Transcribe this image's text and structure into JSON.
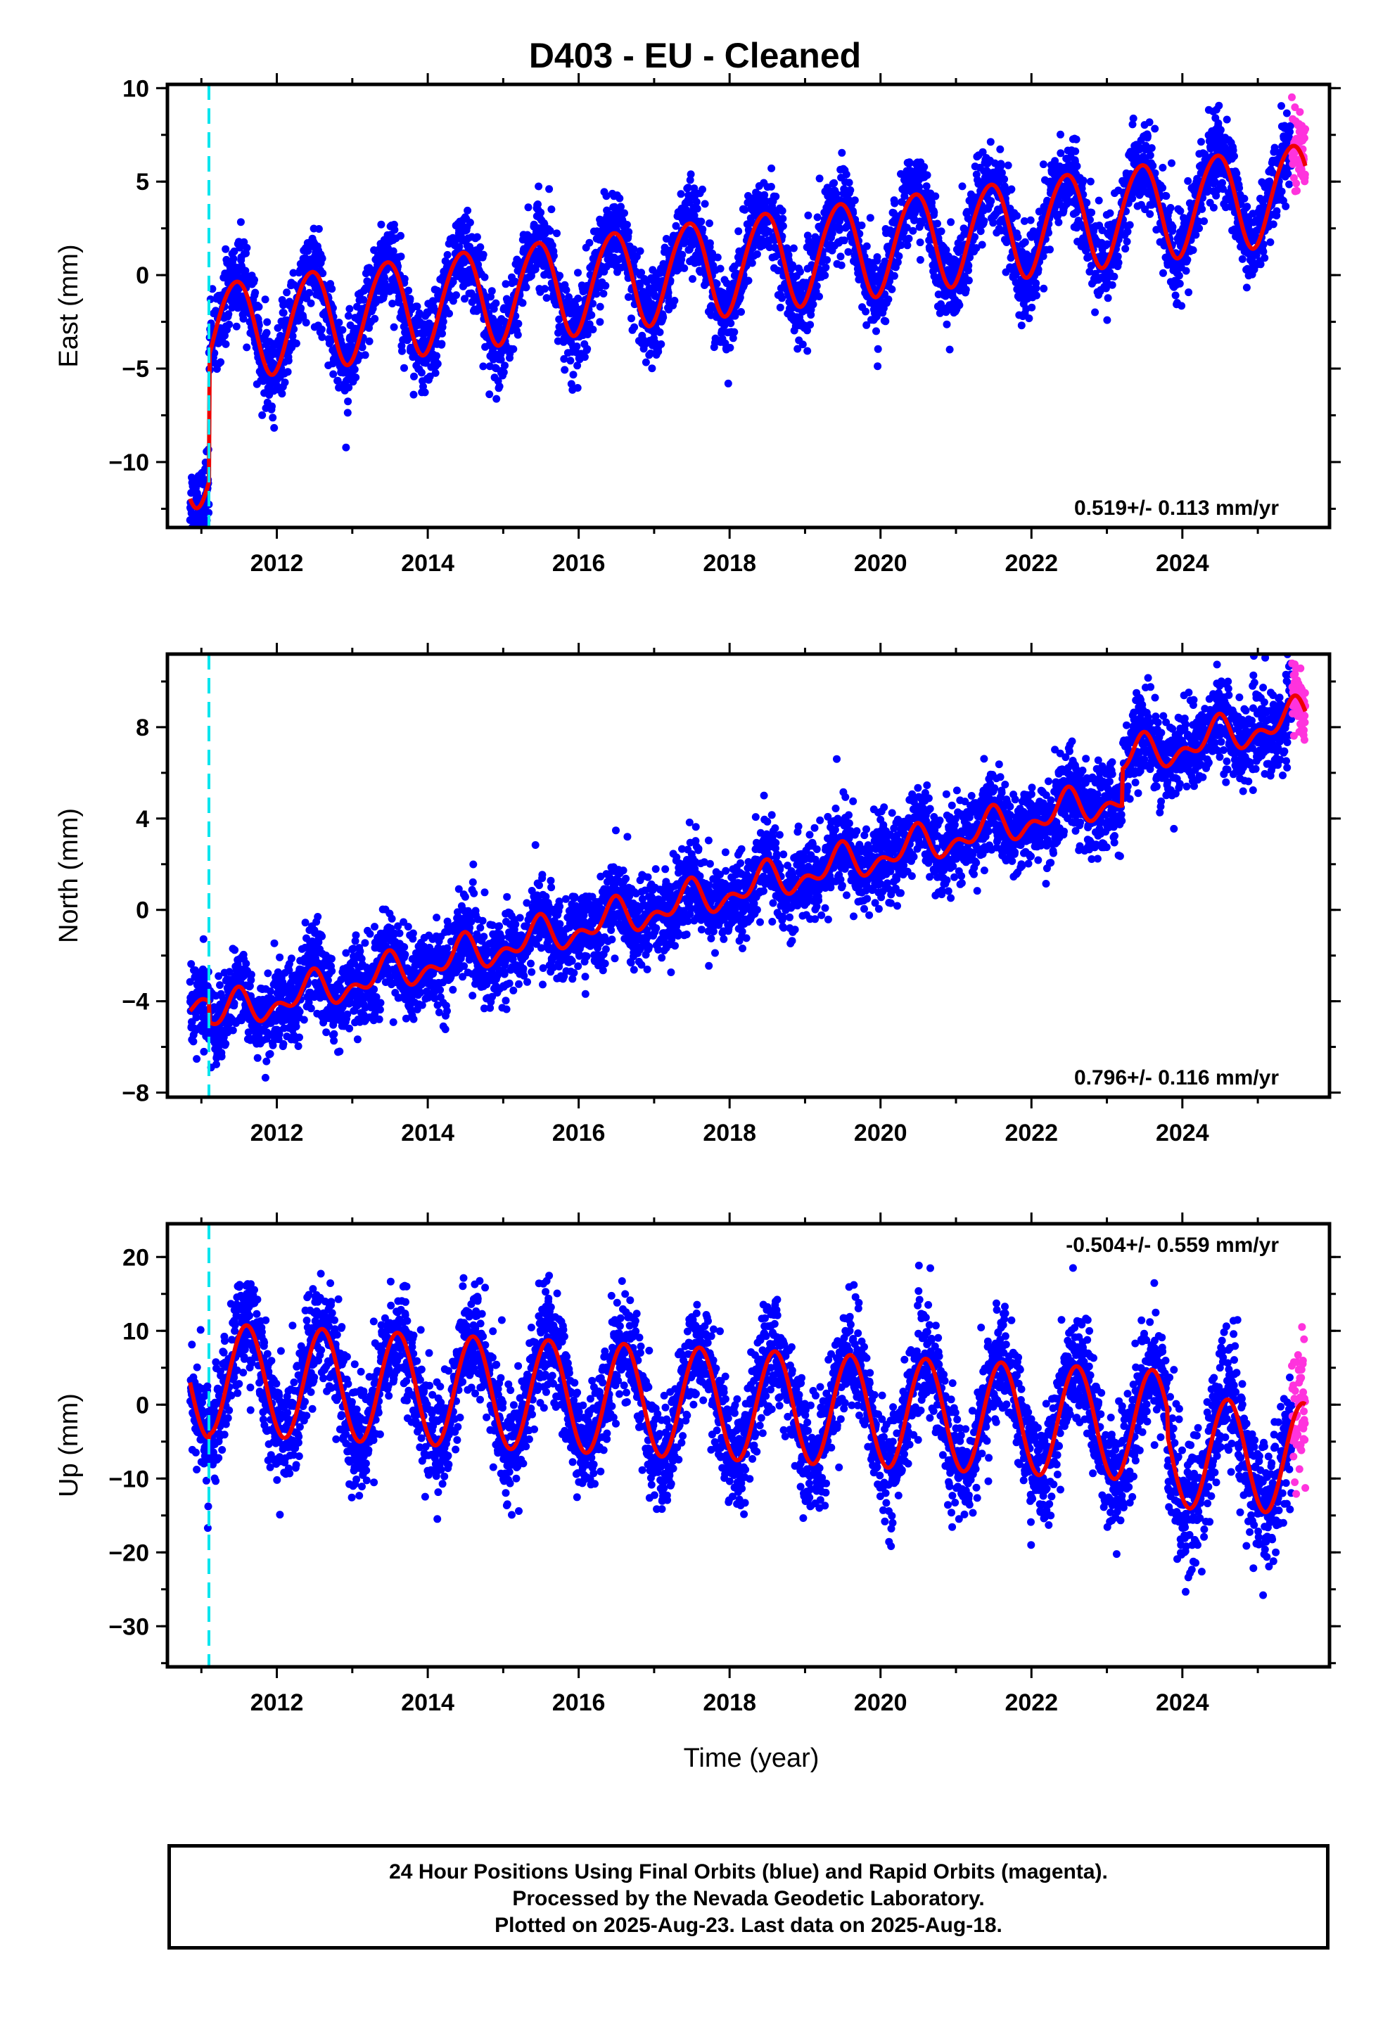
{
  "title": "D403  - EU - Cleaned",
  "x_axis_label": "Time (year)",
  "colors": {
    "final_orbits": "#0000ff",
    "rapid_orbits": "#ff33dd",
    "model_fit": "#ee0000",
    "event_marker": "#00e5ee"
  },
  "caption": {
    "line1": "24 Hour Positions Using Final Orbits (blue) and Rapid Orbits (magenta).",
    "line2": "Processed by the Nevada Geodetic Laboratory.",
    "line3": "Plotted on 2025-Aug-23. Last data on 2025-Aug-18."
  },
  "chart_data": [
    {
      "type": "scatter",
      "component": "East",
      "ylabel": "East (mm)",
      "rate_label": "0.519+/- 0.113 mm/yr",
      "xlim": [
        2010.55,
        2025.95
      ],
      "ylim": [
        -13.5,
        10.2
      ],
      "yticks": [
        -10,
        -5,
        0,
        5,
        10
      ],
      "xticks": [
        2012,
        2014,
        2016,
        2018,
        2020,
        2022,
        2024
      ],
      "data_start": 2010.85,
      "data_end": 2025.63,
      "rapid_start": 2025.45,
      "event_marker_x": 2011.1,
      "model": {
        "pre_event_offset": -9.7,
        "post_event_offset": -3.0,
        "trend_mm_per_yr": 0.519,
        "trend_origin": 2011.1,
        "annual_amplitude": 2.6,
        "annual_peak_phase": 0.45,
        "semiannual_amplitude": 0.2,
        "semiannual_peak_phase": 0.15,
        "post_event_decay_yr": 0.12
      },
      "scatter_sigma": 1.1
    },
    {
      "type": "scatter",
      "component": "North",
      "ylabel": "North (mm)",
      "rate_label": "0.796+/- 0.116 mm/yr",
      "xlim": [
        2010.55,
        2025.95
      ],
      "ylim": [
        -8.2,
        11.2
      ],
      "yticks": [
        -8,
        -4,
        0,
        4,
        8
      ],
      "xticks": [
        2012,
        2014,
        2016,
        2018,
        2020,
        2022,
        2024
      ],
      "data_start": 2010.85,
      "data_end": 2025.63,
      "rapid_start": 2025.45,
      "event_marker_x": 2011.1,
      "model": {
        "pre_event_offset": -3.8,
        "post_event_offset": -4.7,
        "trend_mm_per_yr": 0.796,
        "trend_origin": 2011.1,
        "annual_amplitude": 0.6,
        "annual_peak_phase": 0.45,
        "semiannual_amplitude": 0.45,
        "semiannual_peak_phase": 0.0,
        "extra_offset_after": 2023.2,
        "extra_offset_mm": 1.6,
        "post_event_decay_yr": 0.0
      },
      "scatter_sigma": 0.9
    },
    {
      "type": "scatter",
      "component": "Up",
      "ylabel": "Up (mm)",
      "rate_label": "-0.504+/- 0.559 mm/yr",
      "xlim": [
        2010.55,
        2025.95
      ],
      "ylim": [
        -35.5,
        24.5
      ],
      "yticks": [
        -30,
        -20,
        -10,
        0,
        10,
        20
      ],
      "xticks": [
        2012,
        2014,
        2016,
        2018,
        2020,
        2022,
        2024
      ],
      "data_start": 2010.85,
      "data_end": 2025.63,
      "rapid_start": 2025.45,
      "event_marker_x": 2011.1,
      "model": {
        "pre_event_offset": 3.0,
        "post_event_offset": 3.5,
        "trend_mm_per_yr": -0.504,
        "trend_origin": 2011.1,
        "annual_amplitude": 7.5,
        "annual_peak_phase": 0.6,
        "semiannual_amplitude": 0.0,
        "semiannual_peak_phase": 0.0,
        "extra_offset_after": 2023.8,
        "extra_offset_mm": -3.5,
        "post_event_decay_yr": 0.0
      },
      "scatter_sigma": 3.6
    }
  ]
}
